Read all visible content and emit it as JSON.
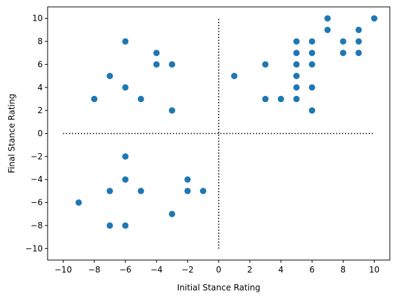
{
  "chart_data": {
    "type": "scatter",
    "xlabel": "Initial Stance Rating",
    "ylabel": "Final Stance Rating",
    "xlim": [
      -11,
      11
    ],
    "ylim": [
      -11,
      11
    ],
    "x_ticks": [
      -10,
      -8,
      -6,
      -4,
      -2,
      0,
      2,
      4,
      6,
      8,
      10
    ],
    "y_ticks": [
      -10,
      -8,
      -6,
      -4,
      -2,
      0,
      2,
      4,
      6,
      8,
      10
    ],
    "x_tick_labels": [
      "−10",
      "−8",
      "−6",
      "−4",
      "−2",
      "0",
      "2",
      "4",
      "6",
      "8",
      "10"
    ],
    "y_tick_labels": [
      "−10",
      "−8",
      "−6",
      "−4",
      "−2",
      "0",
      "2",
      "4",
      "6",
      "8",
      "10"
    ],
    "grid": false,
    "marker_color": "#1f77b4",
    "reference_lines": [
      {
        "orientation": "horizontal",
        "value": 0,
        "from": -10,
        "to": 10,
        "style": "dotted",
        "color": "#000000"
      },
      {
        "orientation": "vertical",
        "value": 0,
        "from": -10,
        "to": 10,
        "style": "dotted",
        "color": "#000000"
      }
    ],
    "points": [
      {
        "x": -9,
        "y": -6
      },
      {
        "x": -8,
        "y": 3
      },
      {
        "x": -7,
        "y": 5
      },
      {
        "x": -7,
        "y": -5
      },
      {
        "x": -7,
        "y": -8
      },
      {
        "x": -6,
        "y": 8
      },
      {
        "x": -6,
        "y": 4
      },
      {
        "x": -6,
        "y": -2
      },
      {
        "x": -6,
        "y": -4
      },
      {
        "x": -6,
        "y": -8
      },
      {
        "x": -5,
        "y": 3
      },
      {
        "x": -5,
        "y": -5
      },
      {
        "x": -4,
        "y": 7
      },
      {
        "x": -4,
        "y": 6
      },
      {
        "x": -3,
        "y": 6
      },
      {
        "x": -3,
        "y": 2
      },
      {
        "x": -3,
        "y": -7
      },
      {
        "x": -2,
        "y": -4
      },
      {
        "x": -2,
        "y": -5
      },
      {
        "x": -1,
        "y": -5
      },
      {
        "x": 1,
        "y": 5
      },
      {
        "x": 3,
        "y": 6
      },
      {
        "x": 3,
        "y": 3
      },
      {
        "x": 4,
        "y": 3
      },
      {
        "x": 5,
        "y": 8
      },
      {
        "x": 5,
        "y": 7
      },
      {
        "x": 5,
        "y": 6
      },
      {
        "x": 5,
        "y": 5
      },
      {
        "x": 5,
        "y": 4
      },
      {
        "x": 5,
        "y": 3
      },
      {
        "x": 6,
        "y": 8
      },
      {
        "x": 6,
        "y": 7
      },
      {
        "x": 6,
        "y": 6
      },
      {
        "x": 6,
        "y": 4
      },
      {
        "x": 6,
        "y": 2
      },
      {
        "x": 7,
        "y": 10
      },
      {
        "x": 7,
        "y": 9
      },
      {
        "x": 8,
        "y": 8
      },
      {
        "x": 8,
        "y": 7
      },
      {
        "x": 9,
        "y": 9
      },
      {
        "x": 9,
        "y": 8
      },
      {
        "x": 9,
        "y": 7
      },
      {
        "x": 10,
        "y": 10
      }
    ]
  }
}
